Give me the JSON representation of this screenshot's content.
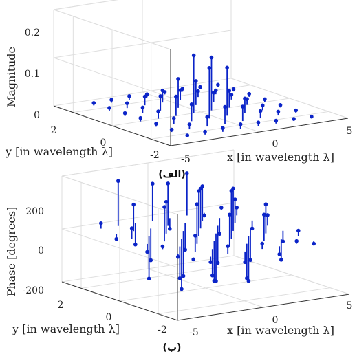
{
  "chart_data": [
    {
      "type": "stem3",
      "caption": "(الف)",
      "xlabel": "x [in wavelength λ]",
      "ylabel": "y [in wavelength λ]",
      "zlabel": "Magnitude",
      "xlim": [
        -5,
        5
      ],
      "ylim": [
        -3,
        3
      ],
      "zlim": [
        0,
        0.2
      ],
      "x_ticks": [
        -5,
        0,
        5
      ],
      "y_ticks": [
        -2,
        0,
        2
      ],
      "z_ticks": [
        "0",
        "0.1",
        "0.2"
      ],
      "z_tick_values": [
        0,
        0.1,
        0.2
      ],
      "grid": true,
      "color": "#0b24c8",
      "points": [
        {
          "x": -3.4,
          "y": 2.4,
          "z": 0.005
        },
        {
          "x": -2.4,
          "y": 2.4,
          "z": 0.006
        },
        {
          "x": -1.4,
          "y": 2.4,
          "z": 0.008
        },
        {
          "x": -0.4,
          "y": 2.4,
          "z": 0.006
        },
        {
          "x": 0.6,
          "y": 2.4,
          "z": 0.005
        },
        {
          "x": 1.6,
          "y": 2.4,
          "z": 0.006
        },
        {
          "x": 2.6,
          "y": 2.4,
          "z": 0.004
        },
        {
          "x": 3.6,
          "y": 2.4,
          "z": 0.003
        },
        {
          "x": -3.4,
          "y": 1.6,
          "z": 0.006
        },
        {
          "x": -2.4,
          "y": 1.6,
          "z": 0.01
        },
        {
          "x": -1.4,
          "y": 1.6,
          "z": 0.018
        },
        {
          "x": -0.4,
          "y": 1.6,
          "z": 0.025
        },
        {
          "x": 0.6,
          "y": 1.6,
          "z": 0.02
        },
        {
          "x": 1.6,
          "y": 1.6,
          "z": 0.012
        },
        {
          "x": 2.6,
          "y": 1.6,
          "z": 0.008
        },
        {
          "x": 3.6,
          "y": 1.6,
          "z": 0.005
        },
        {
          "x": -3.4,
          "y": 0.8,
          "z": 0.006
        },
        {
          "x": -2.4,
          "y": 0.8,
          "z": 0.012
        },
        {
          "x": -1.4,
          "y": 0.8,
          "z": 0.03
        },
        {
          "x": -0.4,
          "y": 0.8,
          "z": 0.06
        },
        {
          "x": 0.6,
          "y": 0.8,
          "z": 0.05
        },
        {
          "x": 1.6,
          "y": 0.8,
          "z": 0.02
        },
        {
          "x": 2.6,
          "y": 0.8,
          "z": 0.01
        },
        {
          "x": 3.6,
          "y": 0.8,
          "z": 0.006
        },
        {
          "x": -3.4,
          "y": 0.0,
          "z": 0.007
        },
        {
          "x": -2.4,
          "y": 0.0,
          "z": 0.015
        },
        {
          "x": -1.4,
          "y": 0.0,
          "z": 0.04
        },
        {
          "x": -0.4,
          "y": 0.0,
          "z": 0.12
        },
        {
          "x": 0.6,
          "y": 0.0,
          "z": 0.11
        },
        {
          "x": 1.6,
          "y": 0.0,
          "z": 0.035
        },
        {
          "x": 2.6,
          "y": 0.0,
          "z": 0.012
        },
        {
          "x": 3.6,
          "y": 0.0,
          "z": 0.006
        },
        {
          "x": -3.4,
          "y": -0.8,
          "z": 0.006
        },
        {
          "x": -2.4,
          "y": -0.8,
          "z": 0.012
        },
        {
          "x": -1.4,
          "y": -0.8,
          "z": 0.035
        },
        {
          "x": -0.4,
          "y": -0.8,
          "z": 0.105
        },
        {
          "x": 0.6,
          "y": -0.8,
          "z": 0.1
        },
        {
          "x": 1.6,
          "y": -0.8,
          "z": 0.03
        },
        {
          "x": 2.6,
          "y": -0.8,
          "z": 0.01
        },
        {
          "x": 3.6,
          "y": -0.8,
          "z": 0.005
        },
        {
          "x": -3.4,
          "y": -1.6,
          "z": 0.005
        },
        {
          "x": -2.4,
          "y": -1.6,
          "z": 0.01
        },
        {
          "x": -1.4,
          "y": -1.6,
          "z": 0.02
        },
        {
          "x": -0.4,
          "y": -1.6,
          "z": 0.035
        },
        {
          "x": 0.6,
          "y": -1.6,
          "z": 0.03
        },
        {
          "x": 1.6,
          "y": -1.6,
          "z": 0.015
        },
        {
          "x": 2.6,
          "y": -1.6,
          "z": 0.008
        },
        {
          "x": 3.6,
          "y": -1.6,
          "z": 0.005
        },
        {
          "x": -3.4,
          "y": -2.4,
          "z": 0.004
        },
        {
          "x": -2.4,
          "y": -2.4,
          "z": 0.006
        },
        {
          "x": -1.4,
          "y": -2.4,
          "z": 0.008
        },
        {
          "x": -0.4,
          "y": -2.4,
          "z": 0.01
        },
        {
          "x": 0.6,
          "y": -2.4,
          "z": 0.008
        },
        {
          "x": 1.6,
          "y": -2.4,
          "z": 0.006
        },
        {
          "x": 2.6,
          "y": -2.4,
          "z": 0.004
        },
        {
          "x": 3.6,
          "y": -2.4,
          "z": 0.003
        }
      ]
    },
    {
      "type": "stem3",
      "caption": "(ب)",
      "xlabel": "x [in wavelength λ]",
      "ylabel": "y [in wavelength λ]",
      "zlabel": "Phase [degrees]",
      "xlim": [
        -5,
        5
      ],
      "ylim": [
        -3,
        3
      ],
      "zlim": [
        -200,
        200
      ],
      "x_ticks": [
        -5,
        0,
        5
      ],
      "y_ticks": [
        -2,
        0,
        2
      ],
      "z_ticks": [
        "-200",
        "0",
        "200"
      ],
      "z_tick_values": [
        -200,
        0,
        200
      ],
      "grid": true,
      "color": "#0b24c8",
      "points": [
        {
          "x": -3.4,
          "y": 2.4,
          "z": 20
        },
        {
          "x": -2.4,
          "y": 2.4,
          "z": 170
        },
        {
          "x": -1.4,
          "y": 2.4,
          "z": -80
        },
        {
          "x": -0.4,
          "y": 2.4,
          "z": 140
        },
        {
          "x": 0.6,
          "y": 2.4,
          "z": -40
        },
        {
          "x": 1.6,
          "y": 2.4,
          "z": 160
        },
        {
          "x": 2.6,
          "y": 2.4,
          "z": -10
        },
        {
          "x": 3.6,
          "y": 2.4,
          "z": 10
        },
        {
          "x": -3.4,
          "y": 1.6,
          "z": -20
        },
        {
          "x": -2.4,
          "y": 1.6,
          "z": 100
        },
        {
          "x": -1.4,
          "y": 1.6,
          "z": -120
        },
        {
          "x": -0.4,
          "y": 1.6,
          "z": 160
        },
        {
          "x": 0.6,
          "y": 1.6,
          "z": -100
        },
        {
          "x": 1.6,
          "y": 1.6,
          "z": 130
        },
        {
          "x": 2.6,
          "y": 1.6,
          "z": -60
        },
        {
          "x": 3.6,
          "y": 1.6,
          "z": 30
        },
        {
          "x": -3.4,
          "y": 0.8,
          "z": 40
        },
        {
          "x": -2.4,
          "y": 0.8,
          "z": -160
        },
        {
          "x": -1.4,
          "y": 0.8,
          "z": 120
        },
        {
          "x": -0.4,
          "y": 0.8,
          "z": -170
        },
        {
          "x": 0.6,
          "y": 0.8,
          "z": 150
        },
        {
          "x": 1.6,
          "y": 0.8,
          "z": -140
        },
        {
          "x": 2.6,
          "y": 0.8,
          "z": 90
        },
        {
          "x": 3.6,
          "y": 0.8,
          "z": -30
        },
        {
          "x": -3.4,
          "y": 0.0,
          "z": -30
        },
        {
          "x": -2.4,
          "y": 0.0,
          "z": 130
        },
        {
          "x": -1.4,
          "y": 0.0,
          "z": -190
        },
        {
          "x": -0.4,
          "y": 0.0,
          "z": 170
        },
        {
          "x": 0.6,
          "y": 0.0,
          "z": -180
        },
        {
          "x": 1.6,
          "y": 0.0,
          "z": 160
        },
        {
          "x": 2.6,
          "y": 0.0,
          "z": -120
        },
        {
          "x": 3.6,
          "y": 0.0,
          "z": 40
        },
        {
          "x": -3.4,
          "y": -0.8,
          "z": 10
        },
        {
          "x": -2.4,
          "y": -0.8,
          "z": -120
        },
        {
          "x": -1.4,
          "y": -0.8,
          "z": 150
        },
        {
          "x": -0.4,
          "y": -0.8,
          "z": -150
        },
        {
          "x": 0.6,
          "y": -0.8,
          "z": 180
        },
        {
          "x": 1.6,
          "y": -0.8,
          "z": -170
        },
        {
          "x": 2.6,
          "y": -0.8,
          "z": 110
        },
        {
          "x": 3.6,
          "y": -0.8,
          "z": -40
        },
        {
          "x": -3.4,
          "y": -1.6,
          "z": -10
        },
        {
          "x": -2.4,
          "y": -1.6,
          "z": 60
        },
        {
          "x": -1.4,
          "y": -1.6,
          "z": -100
        },
        {
          "x": -0.4,
          "y": -1.6,
          "z": 120
        },
        {
          "x": 0.6,
          "y": -1.6,
          "z": -130
        },
        {
          "x": 1.6,
          "y": -1.6,
          "z": 100
        },
        {
          "x": 2.6,
          "y": -1.6,
          "z": -80
        },
        {
          "x": 3.6,
          "y": -1.6,
          "z": 20
        },
        {
          "x": -3.4,
          "y": -2.4,
          "z": 0
        },
        {
          "x": -2.4,
          "y": -2.4,
          "z": -20
        },
        {
          "x": -1.4,
          "y": -2.4,
          "z": 30
        },
        {
          "x": -0.4,
          "y": -2.4,
          "z": -40
        },
        {
          "x": 0.6,
          "y": -2.4,
          "z": 20
        },
        {
          "x": 1.6,
          "y": -2.4,
          "z": -30
        },
        {
          "x": 2.6,
          "y": -2.4,
          "z": 10
        },
        {
          "x": 3.6,
          "y": -2.4,
          "z": -10
        }
      ]
    }
  ]
}
